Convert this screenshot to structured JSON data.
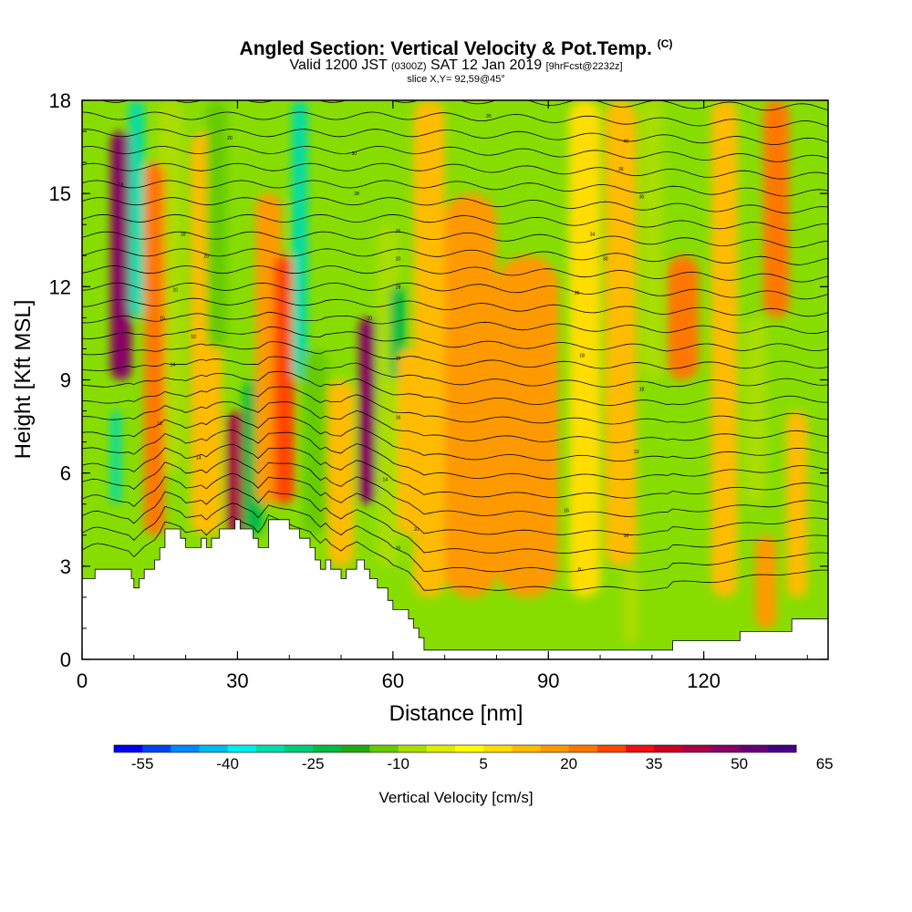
{
  "header": {
    "title_main": "Angled Section: Vertical Velocity & Pot.Temp.",
    "title_units": "(C)",
    "valid_prefix": "Valid 1200 JST",
    "valid_zulu": "(0300Z)",
    "valid_date": "SAT 12 Jan 2019",
    "valid_fcst": "[9hrFcst@2232z]",
    "slice_text": "slice X,Y= 92,59@45°"
  },
  "chart_data": {
    "type": "heatmap",
    "title": "Angled Section: Vertical Velocity & Pot.Temp. (C)",
    "xlabel": "Distance [nm]",
    "ylabel": "Height [Kft MSL]",
    "xlim": [
      0,
      144
    ],
    "ylim": [
      0,
      18
    ],
    "x_ticks": [
      0,
      30,
      60,
      90,
      120
    ],
    "y_ticks": [
      0,
      3,
      6,
      9,
      12,
      15,
      18
    ],
    "background_color": "#88dd00",
    "bands": [
      {
        "x": 7.5,
        "width": 4,
        "value": 45,
        "ytop": 17,
        "ybot": 9
      },
      {
        "x": 10.5,
        "width": 3,
        "value": -35,
        "ytop": 18,
        "ybot": 11
      },
      {
        "x": 6.5,
        "width": 2,
        "value": -35,
        "ytop": 8,
        "ybot": 5
      },
      {
        "x": 17,
        "width": 5,
        "value": -10,
        "ytop": 18,
        "ybot": 6
      },
      {
        "x": 14,
        "width": 4,
        "value": 20,
        "ytop": 16,
        "ybot": 4
      },
      {
        "x": 24,
        "width": 6,
        "value": 10,
        "ytop": 17,
        "ybot": 4
      },
      {
        "x": 26,
        "width": 4,
        "value": -15,
        "ytop": 18,
        "ybot": 10
      },
      {
        "x": 30,
        "width": 4,
        "value": 40,
        "ytop": 8,
        "ybot": 4
      },
      {
        "x": 33,
        "width": 4,
        "value": -25,
        "ytop": 9,
        "ybot": 4
      },
      {
        "x": 36,
        "width": 5,
        "value": 15,
        "ytop": 15,
        "ybot": 5
      },
      {
        "x": 39,
        "width": 4,
        "value": 25,
        "ytop": 13,
        "ybot": 5
      },
      {
        "x": 42,
        "width": 3,
        "value": -35,
        "ytop": 18,
        "ybot": 9
      },
      {
        "x": 45,
        "width": 5,
        "value": -15,
        "ytop": 10,
        "ybot": 4
      },
      {
        "x": 50,
        "width": 5,
        "value": 10,
        "ytop": 9,
        "ybot": 3
      },
      {
        "x": 55,
        "width": 3,
        "value": 45,
        "ytop": 11,
        "ybot": 5
      },
      {
        "x": 59,
        "width": 4,
        "value": -10,
        "ytop": 14,
        "ybot": 3
      },
      {
        "x": 61,
        "width": 3,
        "value": -25,
        "ytop": 12,
        "ybot": 9
      },
      {
        "x": 63,
        "width": 4,
        "value": 10,
        "ytop": 10,
        "ybot": 4
      },
      {
        "x": 67,
        "width": 6,
        "value": 10,
        "ytop": 18,
        "ybot": 2
      },
      {
        "x": 75,
        "width": 10,
        "value": 15,
        "ytop": 15,
        "ybot": 2
      },
      {
        "x": 86,
        "width": 12,
        "value": 15,
        "ytop": 13,
        "ybot": 2
      },
      {
        "x": 97,
        "width": 6,
        "value": 5,
        "ytop": 18,
        "ybot": 2
      },
      {
        "x": 104,
        "width": 6,
        "value": 10,
        "ytop": 18,
        "ybot": 3
      },
      {
        "x": 110,
        "width": 4,
        "value": -10,
        "ytop": 18,
        "ybot": 9
      },
      {
        "x": 106,
        "width": 3,
        "value": -10,
        "ytop": 3,
        "ybot": 0.5
      },
      {
        "x": 116,
        "width": 6,
        "value": 20,
        "ytop": 13,
        "ybot": 9
      },
      {
        "x": 124,
        "width": 5,
        "value": 10,
        "ytop": 18,
        "ybot": 2
      },
      {
        "x": 130,
        "width": 4,
        "value": -10,
        "ytop": 11,
        "ybot": 5
      },
      {
        "x": 134,
        "width": 5,
        "value": 20,
        "ytop": 18,
        "ybot": 11
      },
      {
        "x": 132,
        "width": 4,
        "value": 15,
        "ytop": 4,
        "ybot": 1
      },
      {
        "x": 138,
        "width": 4,
        "value": 10,
        "ytop": 8,
        "ybot": 2
      }
    ],
    "contour_labels": [
      {
        "x": 7.5,
        "y": 15.3,
        "label": "16"
      },
      {
        "x": 28.5,
        "y": 16.8,
        "label": "20"
      },
      {
        "x": 19.5,
        "y": 13.7,
        "label": "18"
      },
      {
        "x": 24,
        "y": 13.0,
        "label": "20"
      },
      {
        "x": 18,
        "y": 11.9,
        "label": "10"
      },
      {
        "x": 15.5,
        "y": 11.0,
        "label": "16"
      },
      {
        "x": 21.5,
        "y": 10.4,
        "label": "10"
      },
      {
        "x": 17.5,
        "y": 9.5,
        "label": "14"
      },
      {
        "x": 15,
        "y": 7.6,
        "label": "12"
      },
      {
        "x": 22.5,
        "y": 6.5,
        "label": "14"
      },
      {
        "x": 52.5,
        "y": 16.3,
        "label": "30"
      },
      {
        "x": 53,
        "y": 15.0,
        "label": "28"
      },
      {
        "x": 61,
        "y": 13.8,
        "label": "26"
      },
      {
        "x": 61,
        "y": 12.9,
        "label": "20"
      },
      {
        "x": 61,
        "y": 12.0,
        "label": "28"
      },
      {
        "x": 55.5,
        "y": 11.0,
        "label": "10"
      },
      {
        "x": 61,
        "y": 9.7,
        "label": "16"
      },
      {
        "x": 61,
        "y": 7.8,
        "label": "16"
      },
      {
        "x": 58.5,
        "y": 5.8,
        "label": "14"
      },
      {
        "x": 64.5,
        "y": 4.2,
        "label": "10"
      },
      {
        "x": 61,
        "y": 3.6,
        "label": "10"
      },
      {
        "x": 78.5,
        "y": 17.5,
        "label": "26"
      },
      {
        "x": 105,
        "y": 16.7,
        "label": "40"
      },
      {
        "x": 104,
        "y": 15.8,
        "label": "36"
      },
      {
        "x": 108,
        "y": 14.9,
        "label": "30"
      },
      {
        "x": 98.5,
        "y": 13.7,
        "label": "34"
      },
      {
        "x": 101,
        "y": 12.9,
        "label": "30"
      },
      {
        "x": 95.5,
        "y": 11.8,
        "label": "30"
      },
      {
        "x": 96.5,
        "y": 9.8,
        "label": "18"
      },
      {
        "x": 108,
        "y": 8.7,
        "label": "18"
      },
      {
        "x": 107,
        "y": 6.7,
        "label": "10"
      },
      {
        "x": 93.5,
        "y": 4.8,
        "label": "16"
      },
      {
        "x": 105,
        "y": 4.0,
        "label": "10"
      },
      {
        "x": 96,
        "y": 2.9,
        "label": "8"
      }
    ],
    "terrain_height": [
      {
        "x": 0,
        "y": 2.6
      },
      {
        "x": 2.5,
        "y": 2.9
      },
      {
        "x": 9.5,
        "y": 2.6
      },
      {
        "x": 10,
        "y": 2.3
      },
      {
        "x": 11,
        "y": 2.6
      },
      {
        "x": 12,
        "y": 2.9
      },
      {
        "x": 14,
        "y": 3.2
      },
      {
        "x": 15,
        "y": 3.6
      },
      {
        "x": 16,
        "y": 4.2
      },
      {
        "x": 19,
        "y": 3.9
      },
      {
        "x": 20,
        "y": 3.6
      },
      {
        "x": 23,
        "y": 3.9
      },
      {
        "x": 24,
        "y": 3.6
      },
      {
        "x": 25,
        "y": 3.9
      },
      {
        "x": 26.5,
        "y": 4.2
      },
      {
        "x": 29.5,
        "y": 4.5
      },
      {
        "x": 30.5,
        "y": 4.2
      },
      {
        "x": 33,
        "y": 3.9
      },
      {
        "x": 34,
        "y": 3.6
      },
      {
        "x": 36,
        "y": 4.5
      },
      {
        "x": 40,
        "y": 4.2
      },
      {
        "x": 42,
        "y": 3.9
      },
      {
        "x": 44,
        "y": 3.6
      },
      {
        "x": 45,
        "y": 3.2
      },
      {
        "x": 46,
        "y": 2.9
      },
      {
        "x": 47,
        "y": 3.2
      },
      {
        "x": 48,
        "y": 2.9
      },
      {
        "x": 50,
        "y": 2.6
      },
      {
        "x": 51,
        "y": 2.9
      },
      {
        "x": 53,
        "y": 3.2
      },
      {
        "x": 54.5,
        "y": 2.9
      },
      {
        "x": 55.5,
        "y": 2.6
      },
      {
        "x": 57,
        "y": 2.3
      },
      {
        "x": 59,
        "y": 1.9
      },
      {
        "x": 60,
        "y": 1.6
      },
      {
        "x": 63,
        "y": 1.3
      },
      {
        "x": 64,
        "y": 1.0
      },
      {
        "x": 65,
        "y": 0.7
      },
      {
        "x": 66,
        "y": 0.3
      },
      {
        "x": 113,
        "y": 0.3
      },
      {
        "x": 114,
        "y": 0.6
      },
      {
        "x": 127,
        "y": 0.9
      },
      {
        "x": 137,
        "y": 1.3
      },
      {
        "x": 144,
        "y": 1.3
      }
    ]
  },
  "colorbar": {
    "title": "Vertical Velocity [cm/s]",
    "tick_labels": [
      "-55",
      "-40",
      "-25",
      "-10",
      "5",
      "20",
      "35",
      "50",
      "65"
    ],
    "colors": [
      "#0000ee",
      "#0044ee",
      "#0088ff",
      "#00bbee",
      "#00eeee",
      "#00ddaa",
      "#00cc77",
      "#00bb44",
      "#22aa11",
      "#66cc00",
      "#aadd00",
      "#ddee00",
      "#ffff00",
      "#ffdd00",
      "#ffbb00",
      "#ff9900",
      "#ff7700",
      "#ff4400",
      "#ee1111",
      "#cc0022",
      "#aa0044",
      "#880066",
      "#660077",
      "#440088"
    ],
    "vmin": -60,
    "step": 5
  }
}
